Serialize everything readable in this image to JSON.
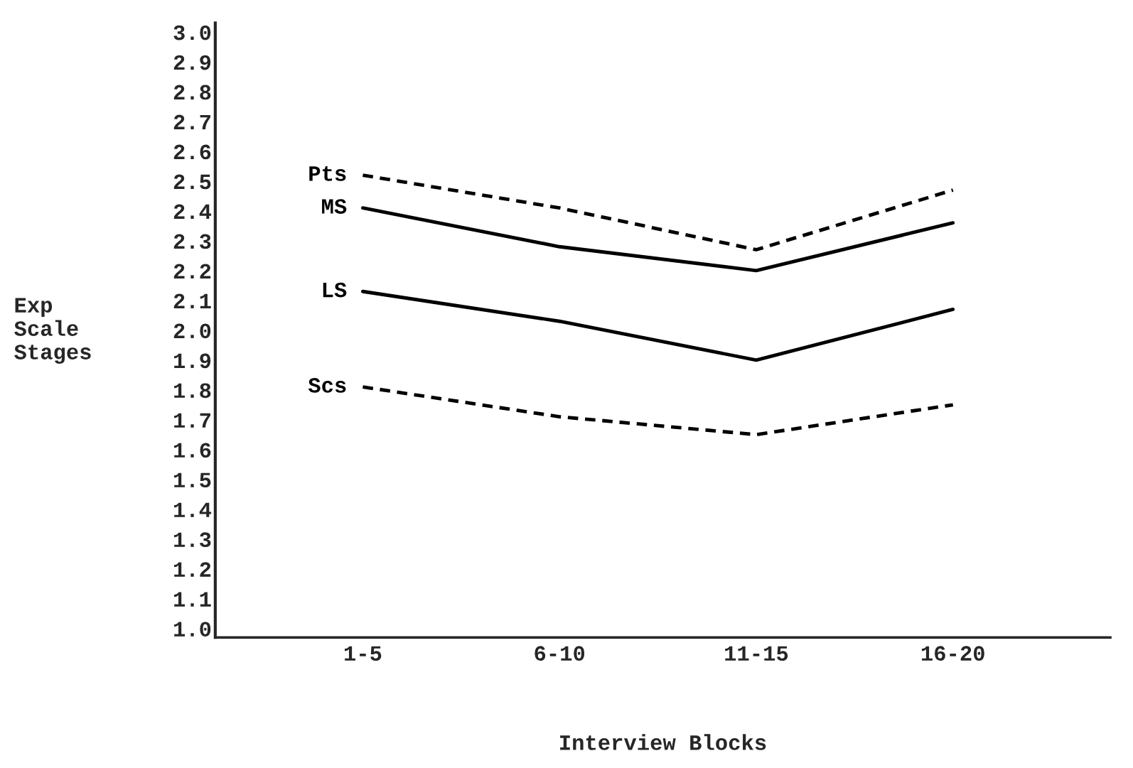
{
  "chart_data": {
    "type": "line",
    "xlabel": "Interview Blocks",
    "ylabel": "Exp\nScale\nStages",
    "categories": [
      "1-5",
      "6-10",
      "11-15",
      "16-20"
    ],
    "series": [
      {
        "name": "Pts",
        "color": "#000000",
        "line_style": "dashed",
        "values": [
          2.52,
          2.41,
          2.27,
          2.47
        ]
      },
      {
        "name": "MS",
        "color": "#000000",
        "line_style": "solid",
        "values": [
          2.41,
          2.28,
          2.2,
          2.36
        ]
      },
      {
        "name": "LS",
        "color": "#000000",
        "line_style": "solid",
        "values": [
          2.13,
          2.03,
          1.9,
          2.07
        ]
      },
      {
        "name": "Scs",
        "color": "#000000",
        "line_style": "dashed",
        "values": [
          1.81,
          1.71,
          1.65,
          1.75
        ]
      }
    ],
    "ylim": [
      0.97,
      3.03
    ],
    "yticks": [
      {
        "value": 1.0,
        "label": "1.0"
      },
      1.1,
      1.2,
      1.3,
      1.4,
      1.5,
      1.6,
      1.7,
      1.8,
      1.9,
      {
        "value": 2.0,
        "label": "2.0"
      },
      2.1,
      2.2,
      2.3,
      2.4,
      2.5,
      2.6,
      2.7,
      2.8,
      2.9,
      {
        "value": 3.0,
        "label": "3.0"
      }
    ],
    "grid": false,
    "legend": false,
    "marker": "none"
  }
}
